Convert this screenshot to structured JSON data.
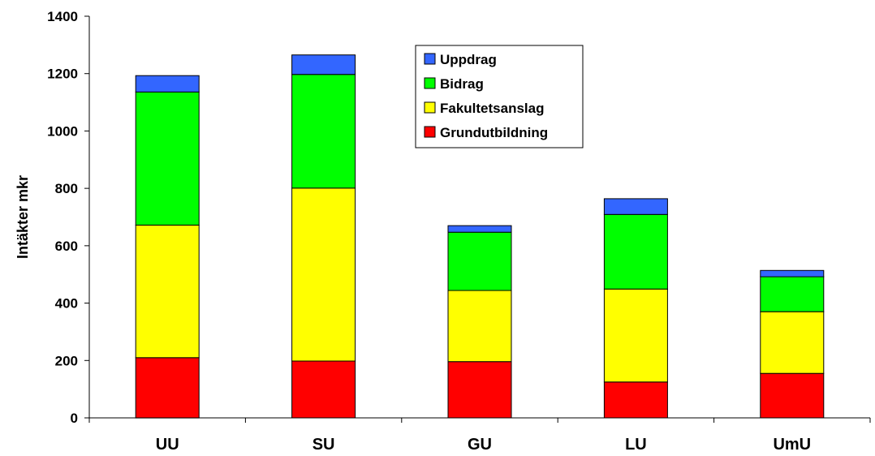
{
  "chart_data": {
    "type": "bar",
    "stacked": true,
    "title": "",
    "xlabel": "",
    "ylabel": "Intäkter mkr",
    "ylim": [
      0,
      1400
    ],
    "yticks": [
      0,
      200,
      400,
      600,
      800,
      1000,
      1200,
      1400
    ],
    "grid": false,
    "legend_position": "top-center",
    "categories": [
      "UU",
      "SU",
      "GU",
      "LU",
      "UmU"
    ],
    "series": [
      {
        "name": "Grundutbildning",
        "color": "#ff0000",
        "values": [
          210,
          198,
          196,
          125,
          155
        ]
      },
      {
        "name": "Fakultetsanslag",
        "color": "#ffff00",
        "values": [
          462,
          603,
          248,
          324,
          215
        ]
      },
      {
        "name": "Bidrag",
        "color": "#00ff00",
        "values": [
          464,
          396,
          203,
          260,
          122
        ]
      },
      {
        "name": "Uppdrag",
        "color": "#3366ff",
        "values": [
          57,
          68,
          23,
          55,
          22
        ]
      }
    ],
    "legend_order": [
      "Uppdrag",
      "Bidrag",
      "Fakultetsanslag",
      "Grundutbildning"
    ]
  }
}
